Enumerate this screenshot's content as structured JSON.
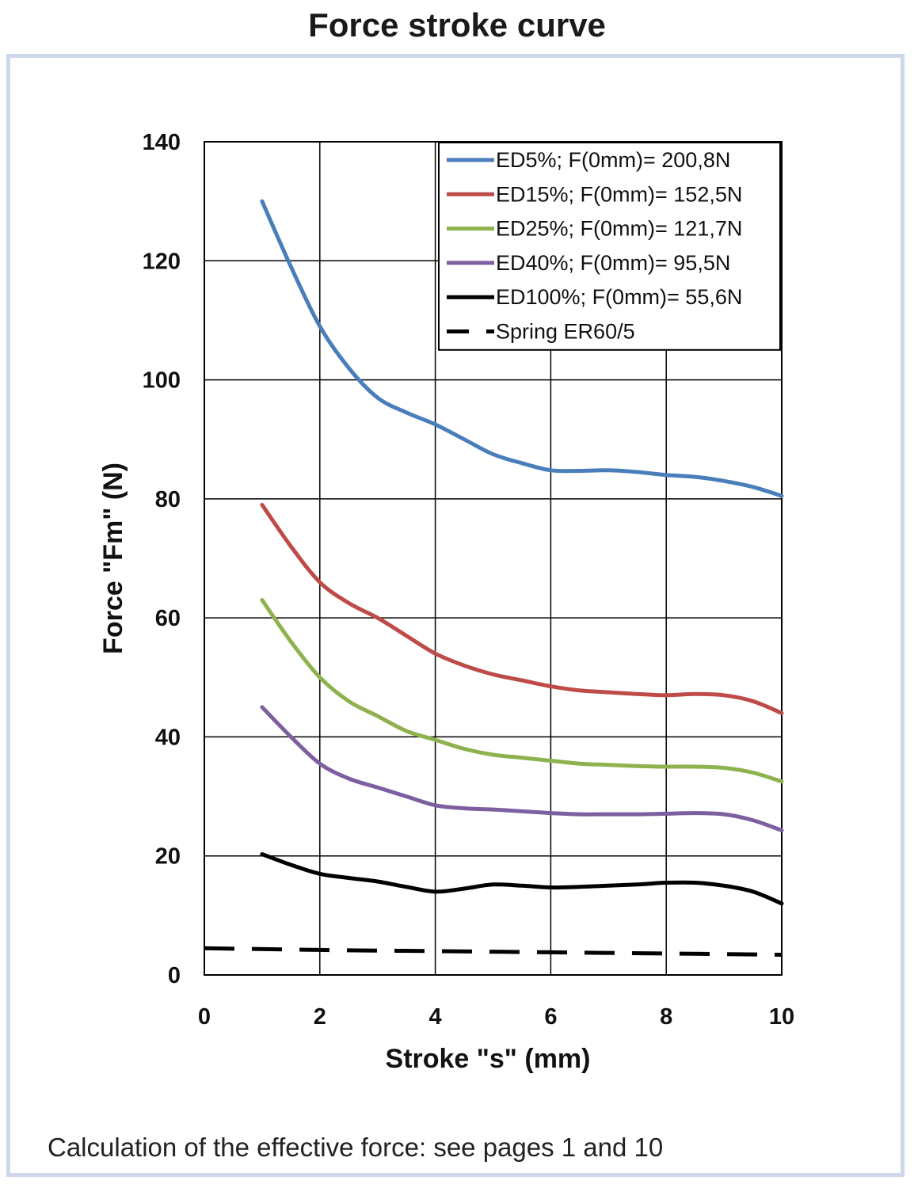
{
  "title": "Force stroke curve",
  "footnote": "Calculation of the effective force: see pages 1 and 10",
  "chart_data": {
    "type": "line",
    "title": "Force stroke curve",
    "xlabel": "Stroke \"s\" (mm)",
    "ylabel": "Force \"Fm\" (N)",
    "xlim": [
      0,
      10
    ],
    "ylim": [
      0,
      140
    ],
    "xticks": [
      0,
      2,
      4,
      6,
      8,
      10
    ],
    "yticks": [
      0,
      20,
      40,
      60,
      80,
      100,
      120,
      140
    ],
    "grid": true,
    "legend_position": "top-right",
    "series": [
      {
        "name": "ED5%; F(0mm)= 200,8N",
        "color": "#4a7ebb",
        "dash": "solid",
        "x": [
          1,
          1.5,
          2,
          2.5,
          3,
          3.5,
          4,
          4.5,
          5,
          5.5,
          6,
          6.5,
          7,
          7.5,
          8,
          8.5,
          9,
          9.5,
          10
        ],
        "y": [
          130,
          119,
          109,
          102,
          97,
          94.5,
          92.5,
          90,
          87.5,
          86,
          84.8,
          84.7,
          84.8,
          84.5,
          84,
          83.7,
          83,
          82,
          80.5
        ]
      },
      {
        "name": "ED15%; F(0mm)= 152,5N",
        "color": "#be4b48",
        "dash": "solid",
        "x": [
          1,
          1.5,
          2,
          2.5,
          3,
          3.5,
          4,
          4.5,
          5,
          5.5,
          6,
          6.5,
          7,
          7.5,
          8,
          8.5,
          9,
          9.5,
          10
        ],
        "y": [
          79,
          72,
          66,
          62.5,
          60,
          57,
          54,
          52,
          50.5,
          49.5,
          48.5,
          47.8,
          47.5,
          47.2,
          47,
          47.2,
          47,
          46,
          44
        ]
      },
      {
        "name": "ED25%; F(0mm)= 121,7N",
        "color": "#8db24e",
        "dash": "solid",
        "x": [
          1,
          1.5,
          2,
          2.5,
          3,
          3.5,
          4,
          4.5,
          5,
          5.5,
          6,
          6.5,
          7,
          7.5,
          8,
          8.5,
          9,
          9.5,
          10
        ],
        "y": [
          63,
          56,
          50,
          46,
          43.5,
          41,
          39.5,
          38,
          37,
          36.5,
          36,
          35.5,
          35.3,
          35.1,
          35,
          35,
          34.8,
          34,
          32.5
        ]
      },
      {
        "name": "ED40%; F(0mm)= 95,5N",
        "color": "#7d5fa0",
        "dash": "solid",
        "x": [
          1,
          1.5,
          2,
          2.5,
          3,
          3.5,
          4,
          4.5,
          5,
          5.5,
          6,
          6.5,
          7,
          7.5,
          8,
          8.5,
          9,
          9.5,
          10
        ],
        "y": [
          45,
          40,
          35.5,
          33,
          31.5,
          30,
          28.5,
          28,
          27.8,
          27.5,
          27.2,
          27,
          27,
          27,
          27.1,
          27.2,
          27,
          26,
          24.3
        ]
      },
      {
        "name": "ED100%; F(0mm)= 55,6N",
        "color": "#000000",
        "dash": "solid",
        "x": [
          1,
          1.5,
          2,
          2.5,
          3,
          3.5,
          4,
          4.5,
          5,
          5.5,
          6,
          6.5,
          7,
          7.5,
          8,
          8.5,
          9,
          9.5,
          10
        ],
        "y": [
          20.3,
          18.5,
          17,
          16.3,
          15.7,
          14.8,
          14,
          14.5,
          15.2,
          15,
          14.7,
          14.8,
          15,
          15.2,
          15.5,
          15.5,
          15,
          14,
          12
        ]
      },
      {
        "name": "Spring ER60/5",
        "color": "#000000",
        "dash": "dashed",
        "x": [
          0,
          2,
          4,
          6,
          8,
          10
        ],
        "y": [
          4.5,
          4.2,
          4.0,
          3.8,
          3.6,
          3.4
        ]
      }
    ]
  }
}
